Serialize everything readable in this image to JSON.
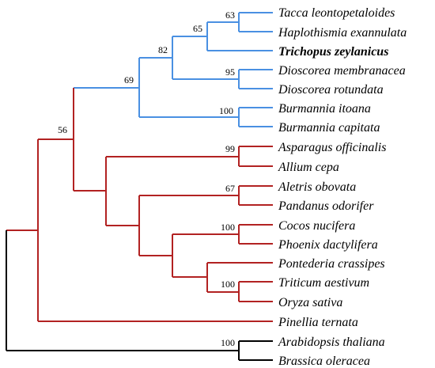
{
  "colors": {
    "blue": "#4a90e2",
    "red": "#b22222",
    "black": "#000000"
  },
  "taxa": [
    {
      "name": "Tacca leontopetaloides",
      "bold": false
    },
    {
      "name": "Haplothismia exannulata",
      "bold": false
    },
    {
      "name": "Trichopus zeylanicus",
      "bold": true
    },
    {
      "name": "Dioscorea membranacea",
      "bold": false
    },
    {
      "name": "Dioscorea rotundata",
      "bold": false
    },
    {
      "name": "Burmannia itoana",
      "bold": false
    },
    {
      "name": "Burmannia capitata",
      "bold": false
    },
    {
      "name": "Asparagus officinalis",
      "bold": false
    },
    {
      "name": "Allium cepa",
      "bold": false
    },
    {
      "name": "Aletris obovata",
      "bold": false
    },
    {
      "name": "Pandanus odorifer",
      "bold": false
    },
    {
      "name": "Cocos nucifera",
      "bold": false
    },
    {
      "name": "Phoenix dactylifera",
      "bold": false
    },
    {
      "name": "Pontederia crassipes",
      "bold": false
    },
    {
      "name": "Triticum aestivum",
      "bold": false
    },
    {
      "name": "Oryza sativa",
      "bold": false
    },
    {
      "name": "Pinellia ternata",
      "bold": false
    },
    {
      "name": "Arabidopsis thaliana",
      "bold": false
    },
    {
      "name": "Brassica oleracea",
      "bold": false
    }
  ],
  "bootstrap": [
    "63",
    "65",
    "82",
    "95",
    "69",
    "100",
    "56",
    "99",
    "67",
    "100",
    "100",
    "100"
  ]
}
